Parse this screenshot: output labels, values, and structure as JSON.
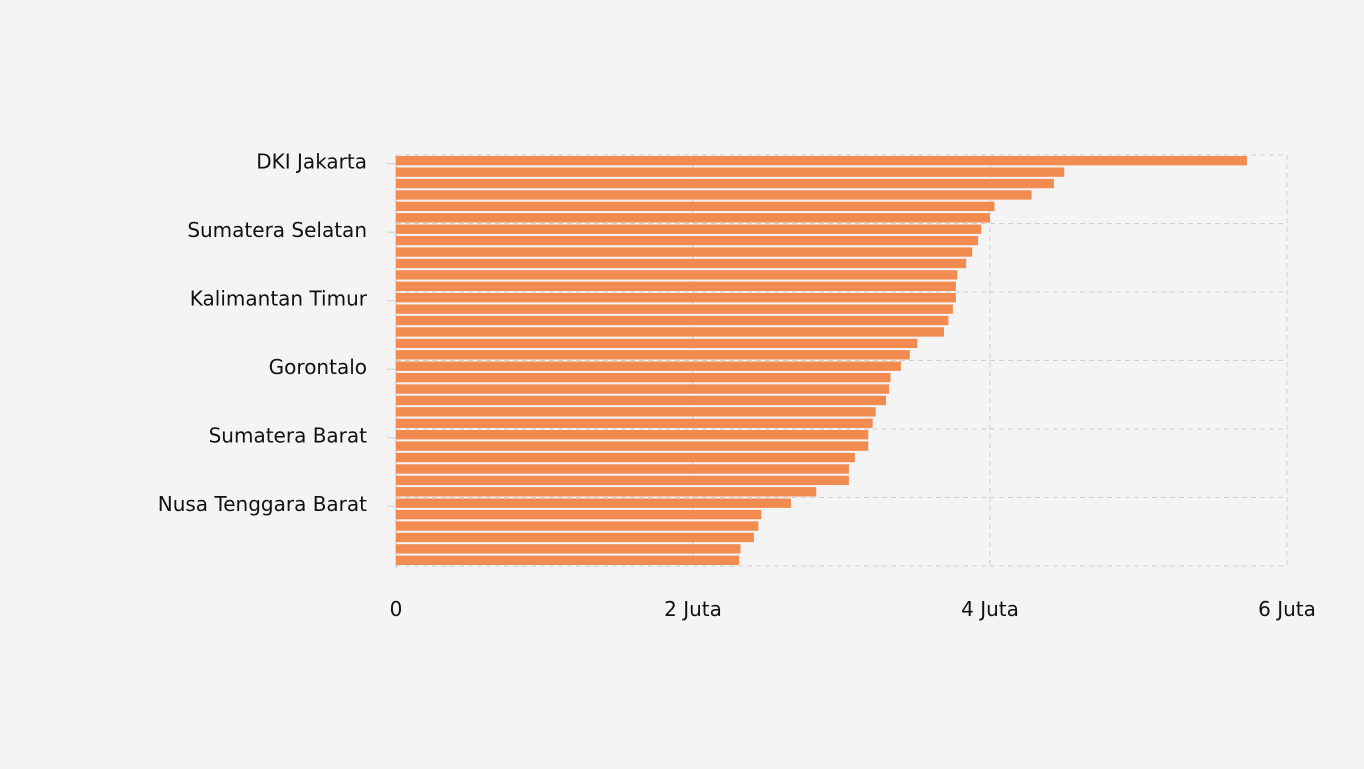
{
  "chart_data": {
    "type": "bar",
    "orientation": "horizontal",
    "title": "",
    "xlabel": "",
    "ylabel": "",
    "xlim": [
      0,
      6000000
    ],
    "x_tick_values": [
      0,
      2000000,
      4000000,
      6000000
    ],
    "x_tick_labels": [
      "0",
      "2 Juta",
      "4 Juta",
      "6 Juta"
    ],
    "grid": true,
    "bar_color": "#f28b50",
    "categories": [
      "DKI Jakarta",
      "",
      "",
      "",
      "",
      "",
      "Sumatera Selatan",
      "",
      "",
      "",
      "",
      "",
      "Kalimantan Timur",
      "",
      "",
      "",
      "",
      "",
      "Gorontalo",
      "",
      "",
      "",
      "",
      "",
      "Sumatera Barat",
      "",
      "",
      "",
      "",
      "",
      "Nusa Tenggara Barat",
      "",
      "",
      "",
      "",
      ""
    ],
    "values": [
      5730000,
      4500000,
      4430000,
      4280000,
      4030000,
      4000000,
      3940000,
      3920000,
      3880000,
      3840000,
      3780000,
      3770000,
      3770000,
      3750000,
      3720000,
      3690000,
      3510000,
      3460000,
      3400000,
      3330000,
      3320000,
      3300000,
      3230000,
      3210000,
      3180000,
      3180000,
      3090000,
      3050000,
      3050000,
      2830000,
      2660000,
      2460000,
      2440000,
      2410000,
      2320000,
      2310000
    ]
  }
}
